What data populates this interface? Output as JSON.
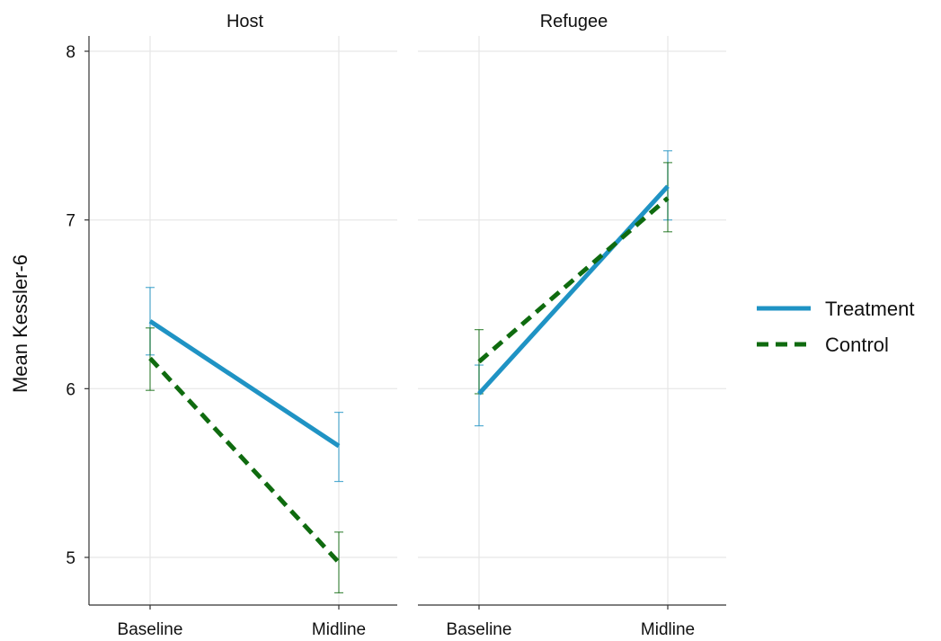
{
  "chart_data": {
    "type": "line",
    "ylabel": "Mean Kessler-6",
    "xlabel": "",
    "ylim": [
      4.75,
      8.1
    ],
    "yticks": [
      5,
      6,
      7,
      8
    ],
    "categories": [
      "Baseline",
      "Midline"
    ],
    "grid": true,
    "legend_position": "right",
    "series_styles": [
      {
        "name": "Treatment",
        "color": "#1f93c4",
        "dash": "solid"
      },
      {
        "name": "Control",
        "color": "#0f6b0f",
        "dash": "dashed"
      }
    ],
    "panels": [
      {
        "title": "Host",
        "series": [
          {
            "name": "Treatment",
            "values": [
              6.4,
              5.66
            ],
            "ci_low": [
              6.2,
              5.45
            ],
            "ci_high": [
              6.6,
              5.86
            ]
          },
          {
            "name": "Control",
            "values": [
              6.18,
              4.97
            ],
            "ci_low": [
              5.99,
              4.79
            ],
            "ci_high": [
              6.36,
              5.15
            ]
          }
        ]
      },
      {
        "title": "Refugee",
        "series": [
          {
            "name": "Treatment",
            "values": [
              5.97,
              7.2
            ],
            "ci_low": [
              5.78,
              7.0
            ],
            "ci_high": [
              6.14,
              7.41
            ]
          },
          {
            "name": "Control",
            "values": [
              6.16,
              7.13
            ],
            "ci_low": [
              5.97,
              6.93
            ],
            "ci_high": [
              6.35,
              7.34
            ]
          }
        ]
      }
    ]
  }
}
